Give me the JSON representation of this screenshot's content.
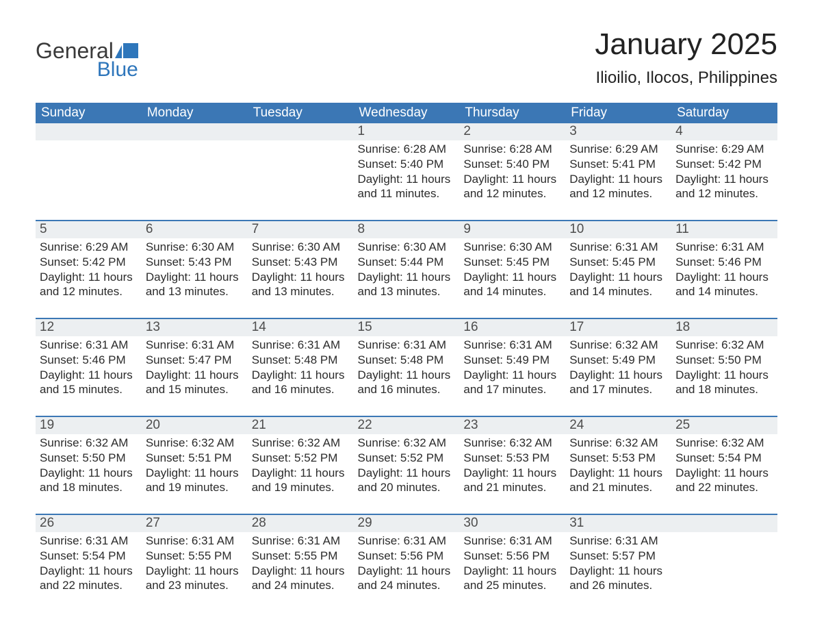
{
  "logo": {
    "word1": "General",
    "word2": "Blue"
  },
  "title": "January 2025",
  "location": "Ilioilio, Ilocos, Philippines",
  "colors": {
    "header_bg": "#3b77b5",
    "header_text": "#ffffff",
    "day_strip_bg": "#eceff1",
    "day_strip_text": "#4d4d4d",
    "body_text": "#2b2b2b",
    "week_rule": "#3b77b5",
    "logo_dark": "#3a3a3a",
    "logo_blue": "#2e76bb"
  },
  "calendar": {
    "day_headers": [
      "Sunday",
      "Monday",
      "Tuesday",
      "Wednesday",
      "Thursday",
      "Friday",
      "Saturday"
    ],
    "weeks": [
      [
        null,
        null,
        null,
        {
          "date": "1",
          "sunrise": "6:28 AM",
          "sunset": "5:40 PM",
          "daylight": "11 hours and 11 minutes."
        },
        {
          "date": "2",
          "sunrise": "6:28 AM",
          "sunset": "5:40 PM",
          "daylight": "11 hours and 12 minutes."
        },
        {
          "date": "3",
          "sunrise": "6:29 AM",
          "sunset": "5:41 PM",
          "daylight": "11 hours and 12 minutes."
        },
        {
          "date": "4",
          "sunrise": "6:29 AM",
          "sunset": "5:42 PM",
          "daylight": "11 hours and 12 minutes."
        }
      ],
      [
        {
          "date": "5",
          "sunrise": "6:29 AM",
          "sunset": "5:42 PM",
          "daylight": "11 hours and 12 minutes."
        },
        {
          "date": "6",
          "sunrise": "6:30 AM",
          "sunset": "5:43 PM",
          "daylight": "11 hours and 13 minutes."
        },
        {
          "date": "7",
          "sunrise": "6:30 AM",
          "sunset": "5:43 PM",
          "daylight": "11 hours and 13 minutes."
        },
        {
          "date": "8",
          "sunrise": "6:30 AM",
          "sunset": "5:44 PM",
          "daylight": "11 hours and 13 minutes."
        },
        {
          "date": "9",
          "sunrise": "6:30 AM",
          "sunset": "5:45 PM",
          "daylight": "11 hours and 14 minutes."
        },
        {
          "date": "10",
          "sunrise": "6:31 AM",
          "sunset": "5:45 PM",
          "daylight": "11 hours and 14 minutes."
        },
        {
          "date": "11",
          "sunrise": "6:31 AM",
          "sunset": "5:46 PM",
          "daylight": "11 hours and 14 minutes."
        }
      ],
      [
        {
          "date": "12",
          "sunrise": "6:31 AM",
          "sunset": "5:46 PM",
          "daylight": "11 hours and 15 minutes."
        },
        {
          "date": "13",
          "sunrise": "6:31 AM",
          "sunset": "5:47 PM",
          "daylight": "11 hours and 15 minutes."
        },
        {
          "date": "14",
          "sunrise": "6:31 AM",
          "sunset": "5:48 PM",
          "daylight": "11 hours and 16 minutes."
        },
        {
          "date": "15",
          "sunrise": "6:31 AM",
          "sunset": "5:48 PM",
          "daylight": "11 hours and 16 minutes."
        },
        {
          "date": "16",
          "sunrise": "6:31 AM",
          "sunset": "5:49 PM",
          "daylight": "11 hours and 17 minutes."
        },
        {
          "date": "17",
          "sunrise": "6:32 AM",
          "sunset": "5:49 PM",
          "daylight": "11 hours and 17 minutes."
        },
        {
          "date": "18",
          "sunrise": "6:32 AM",
          "sunset": "5:50 PM",
          "daylight": "11 hours and 18 minutes."
        }
      ],
      [
        {
          "date": "19",
          "sunrise": "6:32 AM",
          "sunset": "5:50 PM",
          "daylight": "11 hours and 18 minutes."
        },
        {
          "date": "20",
          "sunrise": "6:32 AM",
          "sunset": "5:51 PM",
          "daylight": "11 hours and 19 minutes."
        },
        {
          "date": "21",
          "sunrise": "6:32 AM",
          "sunset": "5:52 PM",
          "daylight": "11 hours and 19 minutes."
        },
        {
          "date": "22",
          "sunrise": "6:32 AM",
          "sunset": "5:52 PM",
          "daylight": "11 hours and 20 minutes."
        },
        {
          "date": "23",
          "sunrise": "6:32 AM",
          "sunset": "5:53 PM",
          "daylight": "11 hours and 21 minutes."
        },
        {
          "date": "24",
          "sunrise": "6:32 AM",
          "sunset": "5:53 PM",
          "daylight": "11 hours and 21 minutes."
        },
        {
          "date": "25",
          "sunrise": "6:32 AM",
          "sunset": "5:54 PM",
          "daylight": "11 hours and 22 minutes."
        }
      ],
      [
        {
          "date": "26",
          "sunrise": "6:31 AM",
          "sunset": "5:54 PM",
          "daylight": "11 hours and 22 minutes."
        },
        {
          "date": "27",
          "sunrise": "6:31 AM",
          "sunset": "5:55 PM",
          "daylight": "11 hours and 23 minutes."
        },
        {
          "date": "28",
          "sunrise": "6:31 AM",
          "sunset": "5:55 PM",
          "daylight": "11 hours and 24 minutes."
        },
        {
          "date": "29",
          "sunrise": "6:31 AM",
          "sunset": "5:56 PM",
          "daylight": "11 hours and 24 minutes."
        },
        {
          "date": "30",
          "sunrise": "6:31 AM",
          "sunset": "5:56 PM",
          "daylight": "11 hours and 25 minutes."
        },
        {
          "date": "31",
          "sunrise": "6:31 AM",
          "sunset": "5:57 PM",
          "daylight": "11 hours and 26 minutes."
        },
        null
      ]
    ],
    "labels": {
      "sunrise": "Sunrise:",
      "sunset": "Sunset:",
      "daylight": "Daylight:"
    }
  }
}
